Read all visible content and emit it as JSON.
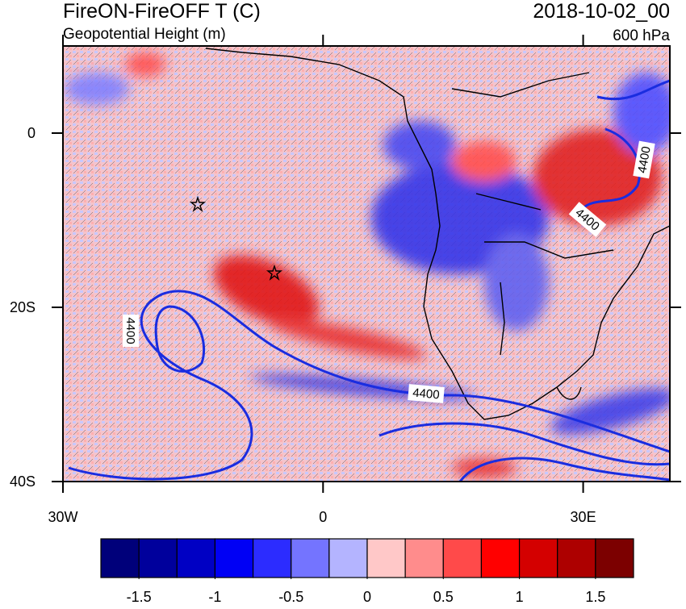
{
  "header": {
    "title": "FireON-FireOFF T (C)",
    "subtitle": "Geopotential Height (m)",
    "date": "2018-10-02_00",
    "level": "600 hPa"
  },
  "map": {
    "xlim": [
      -30,
      40
    ],
    "ylim": [
      -40,
      10
    ],
    "xticks": [
      {
        "value": -30,
        "label": "30W"
      },
      0,
      {
        "value": 30,
        "label": "30E"
      }
    ],
    "yticks": [
      0,
      {
        "value": -20,
        "label": "20S"
      },
      {
        "value": -40,
        "label": "40S"
      }
    ],
    "contour_level": 4400
  },
  "colorbar": {
    "lim": [
      -1.75,
      1.75
    ],
    "ticks": [
      -1.5,
      -1,
      -0.5,
      0,
      0.5,
      1,
      1.5
    ],
    "colors": [
      "#00007a",
      "#00009c",
      "#0000c4",
      "#0000f5",
      "#2c2cff",
      "#7474ff",
      "#b4b4ff",
      "#ffc8c8",
      "#ff8c8c",
      "#ff4a4a",
      "#ff0000",
      "#d40000",
      "#ad0000",
      "#7c0000"
    ]
  }
}
